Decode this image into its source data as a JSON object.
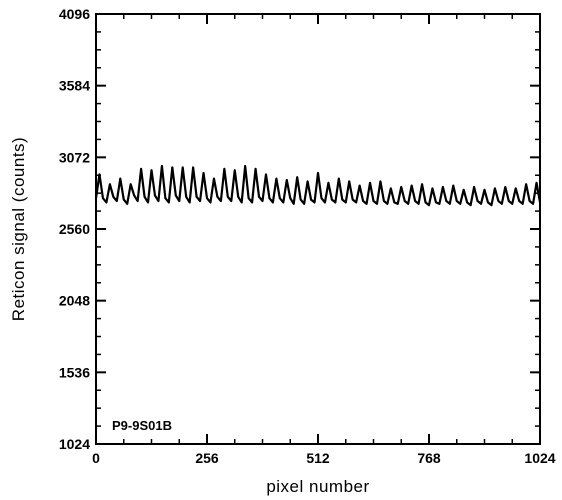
{
  "chart_data": {
    "type": "line",
    "xlabel": "pixel number",
    "ylabel": "Reticon signal (counts)",
    "xlim": [
      0,
      1024
    ],
    "ylim": [
      1024,
      4096
    ],
    "x_ticks": [
      0,
      256,
      512,
      768,
      1024
    ],
    "y_ticks": [
      1024,
      1536,
      2048,
      2560,
      3072,
      3584,
      4096
    ],
    "x_minor_step": 64,
    "y_minor_step": 128,
    "grid": false,
    "annotation": "P9-9S01B",
    "line_color": "#000000",
    "series": [
      {
        "x": [
          0,
          8,
          16,
          24,
          32,
          40,
          48,
          56,
          64,
          72,
          80,
          88,
          96,
          104,
          112,
          120,
          128,
          136,
          144,
          152,
          160,
          168,
          176,
          184,
          192,
          200,
          208,
          216,
          224,
          232,
          240,
          248,
          256,
          264,
          272,
          280,
          288,
          296,
          304,
          312,
          320,
          328,
          336,
          344,
          352,
          360,
          368,
          376,
          384,
          392,
          400,
          408,
          416,
          424,
          432,
          440,
          448,
          456,
          464,
          472,
          480,
          488,
          496,
          504,
          512,
          520,
          528,
          536,
          544,
          552,
          560,
          568,
          576,
          584,
          592,
          600,
          608,
          616,
          624,
          632,
          640,
          648,
          656,
          664,
          672,
          680,
          688,
          696,
          704,
          712,
          720,
          728,
          736,
          744,
          752,
          760,
          768,
          776,
          784,
          792,
          800,
          808,
          816,
          824,
          832,
          840,
          848,
          856,
          864,
          872,
          880,
          888,
          896,
          904,
          912,
          920,
          928,
          936,
          944,
          952,
          960,
          968,
          976,
          984,
          992,
          1000,
          1008,
          1016,
          1024
        ],
        "values": [
          2780,
          2950,
          2780,
          2750,
          2880,
          2790,
          2760,
          2920,
          2770,
          2740,
          2880,
          2800,
          2760,
          2990,
          2790,
          2750,
          2980,
          2800,
          2760,
          3010,
          2780,
          2750,
          3000,
          2800,
          2760,
          3000,
          2790,
          2750,
          3000,
          2790,
          2760,
          2960,
          2780,
          2750,
          2920,
          2790,
          2760,
          2990,
          2790,
          2760,
          2980,
          2790,
          2750,
          3010,
          2780,
          2750,
          2990,
          2790,
          2760,
          2950,
          2780,
          2750,
          2920,
          2780,
          2750,
          2910,
          2780,
          2740,
          2930,
          2770,
          2740,
          2900,
          2770,
          2750,
          2960,
          2780,
          2750,
          2890,
          2770,
          2750,
          2920,
          2770,
          2750,
          2900,
          2770,
          2750,
          2870,
          2760,
          2740,
          2890,
          2760,
          2740,
          2900,
          2760,
          2740,
          2850,
          2750,
          2740,
          2860,
          2760,
          2740,
          2870,
          2760,
          2740,
          2880,
          2750,
          2730,
          2850,
          2750,
          2740,
          2860,
          2760,
          2740,
          2870,
          2760,
          2740,
          2840,
          2750,
          2730,
          2860,
          2760,
          2740,
          2840,
          2750,
          2730,
          2850,
          2760,
          2740,
          2860,
          2760,
          2740,
          2850,
          2760,
          2740,
          2880,
          2760,
          2740,
          2890,
          2750
        ]
      }
    ]
  }
}
